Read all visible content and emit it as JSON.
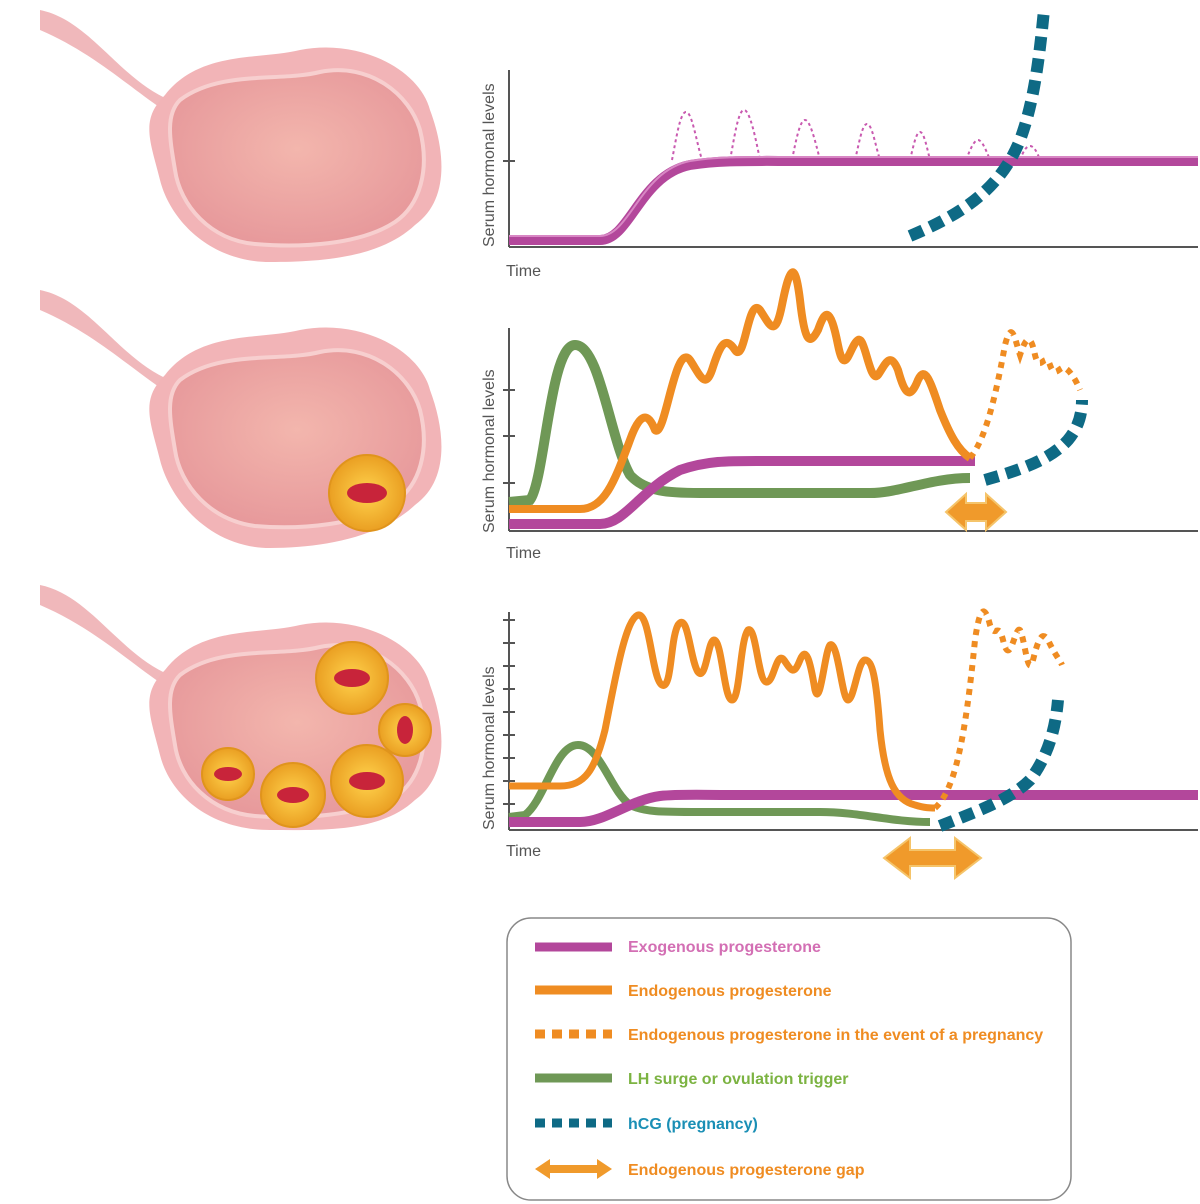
{
  "colors": {
    "exogenous": "#b3479b",
    "exogenous_text": "#d36fb4",
    "endogenous": "#ef8c22",
    "lh": "#6f9856",
    "lh_text": "#7cb342",
    "hcg": "#0e6a85",
    "hcg_text": "#1a8fb5",
    "axis": "#555555",
    "ovary_outer": "#f0b1b4",
    "ovary_inner": "#e9a09f",
    "follicle": "#f7b733",
    "follicle_core": "#c8243a"
  },
  "panels": [
    {
      "ylabel": "Serum hormonal levels",
      "xlabel": "Time",
      "follicles": 0
    },
    {
      "ylabel": "Serum hormonal levels",
      "xlabel": "Time",
      "follicles": 1
    },
    {
      "ylabel": "Serum hormonal levels",
      "xlabel": "Time",
      "follicles": 5
    }
  ],
  "legend": {
    "items": [
      {
        "label": "Exogenous progesterone",
        "style": "solid",
        "color_key": "exogenous",
        "text_color_key": "exogenous_text"
      },
      {
        "label": "Endogenous progesterone",
        "style": "solid",
        "color_key": "endogenous",
        "text_color_key": "endogenous"
      },
      {
        "label": "Endogenous progesterone in the event of a pregnancy",
        "style": "dashed",
        "color_key": "endogenous",
        "text_color_key": "endogenous"
      },
      {
        "label": "LH surge or ovulation trigger",
        "style": "solid",
        "color_key": "lh",
        "text_color_key": "lh_text"
      },
      {
        "label": "hCG (pregnancy)",
        "style": "dashed",
        "color_key": "hcg",
        "text_color_key": "hcg_text"
      },
      {
        "label": "Endogenous progesterone gap",
        "style": "arrow",
        "color_key": "endogenous",
        "text_color_key": "endogenous"
      }
    ]
  }
}
